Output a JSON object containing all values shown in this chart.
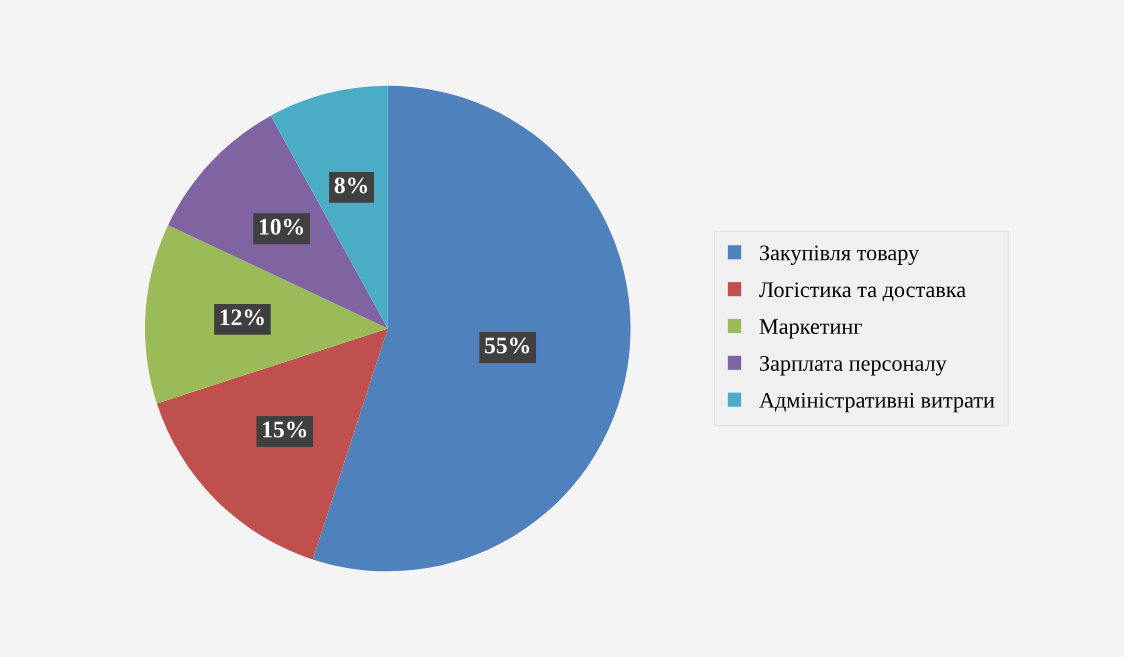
{
  "chart_data": {
    "type": "pie",
    "categories": [
      "Закупівля товару",
      "Логістика та доставка",
      "Маркетинг",
      "Зарплата персоналу",
      "Адміністративні витрати"
    ],
    "values": [
      55,
      15,
      12,
      10,
      8
    ],
    "colors": [
      "#4f81bd",
      "#c0504d",
      "#9bbb59",
      "#8064a2",
      "#4bacc6"
    ],
    "value_labels": [
      "55%",
      "15%",
      "12%",
      "10%",
      "8%"
    ],
    "legend": "right"
  }
}
